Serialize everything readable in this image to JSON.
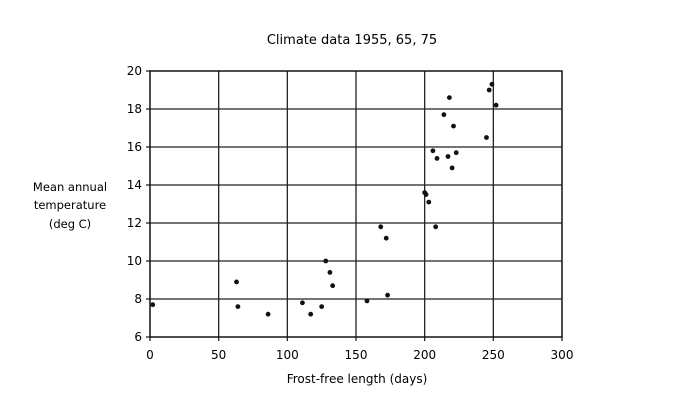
{
  "chart_data": {
    "type": "scatter",
    "title": "Climate data 1955, 65, 75",
    "xlabel": "Frost-free length (days)",
    "ylabel_lines": [
      "Mean annual",
      "temperature",
      "(deg C)"
    ],
    "xlim": [
      0,
      300
    ],
    "ylim": [
      6,
      20
    ],
    "xticks": [
      0,
      50,
      100,
      150,
      200,
      250,
      300
    ],
    "yticks": [
      6,
      8,
      10,
      12,
      14,
      16,
      18,
      20
    ],
    "grid": true,
    "legend": "none",
    "point_color": "#111111",
    "points": [
      [
        2,
        7.7
      ],
      [
        63,
        8.9
      ],
      [
        64,
        7.6
      ],
      [
        86,
        7.2
      ],
      [
        111,
        7.8
      ],
      [
        117,
        7.2
      ],
      [
        125,
        7.6
      ],
      [
        128,
        10.0
      ],
      [
        131,
        9.4
      ],
      [
        133,
        8.7
      ],
      [
        158,
        7.9
      ],
      [
        168,
        11.8
      ],
      [
        172,
        11.2
      ],
      [
        173,
        8.2
      ],
      [
        200,
        13.6
      ],
      [
        201,
        13.5
      ],
      [
        203,
        13.1
      ],
      [
        206,
        15.8
      ],
      [
        208,
        11.8
      ],
      [
        209,
        15.4
      ],
      [
        214,
        17.7
      ],
      [
        217,
        15.5
      ],
      [
        218,
        18.6
      ],
      [
        220,
        14.9
      ],
      [
        221,
        17.1
      ],
      [
        223,
        15.7
      ],
      [
        245,
        16.5
      ],
      [
        247,
        19.0
      ],
      [
        249,
        19.3
      ],
      [
        252,
        18.2
      ]
    ]
  }
}
